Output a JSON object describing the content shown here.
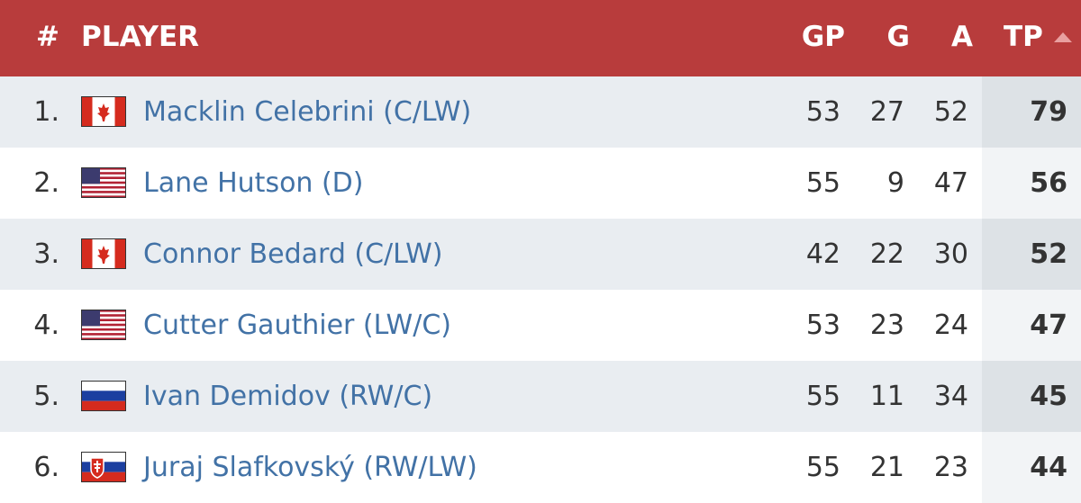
{
  "table": {
    "header": [
      "#",
      "PLAYER",
      "GP",
      "G",
      "A",
      "TP"
    ],
    "rows": [
      [
        "1.",
        "Macklin Celebrini (C/LW)",
        53,
        27,
        52,
        79
      ],
      [
        "2.",
        "Lane Hutson (D)",
        55,
        9,
        47,
        56
      ],
      [
        "3.",
        "Connor Bedard (C/LW)",
        42,
        22,
        30,
        52
      ],
      [
        "4.",
        "Cutter Gauthier (LW/C)",
        53,
        23,
        24,
        47
      ],
      [
        "5.",
        "Ivan Demidov (RW/C)",
        55,
        11,
        34,
        45
      ],
      [
        "6.",
        "Juraj Slafkovský (RW/LW)",
        55,
        21,
        23,
        44
      ]
    ]
  }
}
